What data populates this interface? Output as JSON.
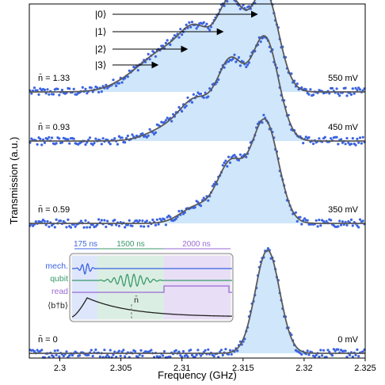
{
  "chart_data": {
    "type": "scatter",
    "xlabel": "Frequency (GHz)",
    "ylabel": "Transmission (a.u.)",
    "xlim": [
      2.2975,
      2.325
    ],
    "x_ticks": [
      "2.3",
      "2.305",
      "2.31",
      "2.315",
      "2.32",
      "2.325"
    ],
    "x_tick_values": [
      2.3,
      2.305,
      2.31,
      2.315,
      2.32,
      2.325
    ],
    "grid": false,
    "colors": {
      "points": "#3b63e0",
      "fit": "#5a5a5a",
      "fill": "#cfe6fb",
      "axis": "#000000"
    },
    "series": [
      {
        "nbar_label": "n̄ = 1.33",
        "drive_label": "550 mV",
        "peaks": [
          {
            "f": 2.3168,
            "amp": 0.96,
            "w": 0.0011
          },
          {
            "f": 2.314,
            "amp": 0.83,
            "w": 0.0011
          },
          {
            "f": 2.3112,
            "amp": 0.52,
            "w": 0.0013
          },
          {
            "f": 2.3088,
            "amp": 0.3,
            "w": 0.0016
          },
          {
            "f": 2.3065,
            "amp": 0.15,
            "w": 0.0018
          }
        ]
      },
      {
        "nbar_label": "n̄ = 0.93",
        "drive_label": "450 mV",
        "peaks": [
          {
            "f": 2.3168,
            "amp": 0.99,
            "w": 0.0011
          },
          {
            "f": 2.314,
            "amp": 0.74,
            "w": 0.0011
          },
          {
            "f": 2.3112,
            "amp": 0.36,
            "w": 0.0013
          },
          {
            "f": 2.3088,
            "amp": 0.12,
            "w": 0.0016
          }
        ]
      },
      {
        "nbar_label": "n̄ = 0.59",
        "drive_label": "350 mV",
        "peaks": [
          {
            "f": 2.3168,
            "amp": 0.99,
            "w": 0.0011
          },
          {
            "f": 2.314,
            "amp": 0.57,
            "w": 0.0011
          },
          {
            "f": 2.3112,
            "amp": 0.16,
            "w": 0.0013
          }
        ]
      },
      {
        "nbar_label": "n̄ = 0",
        "drive_label": "0 mV",
        "peaks": [
          {
            "f": 2.317,
            "amp": 1.0,
            "w": 0.001
          }
        ]
      }
    ],
    "annotations": [
      {
        "label": "|0⟩",
        "target_f": 2.3168
      },
      {
        "label": "|1⟩",
        "target_f": 2.314
      },
      {
        "label": "|2⟩",
        "target_f": 2.3112
      },
      {
        "label": "|3⟩",
        "target_f": 2.3088
      }
    ],
    "inset": {
      "rows": [
        "mech.",
        "qubit",
        "read",
        "⟨b†b⟩"
      ],
      "durations": [
        "175 ns",
        "1500 ns",
        "2000 ns"
      ],
      "nbar_marker": "n̄",
      "colors": {
        "mech": "#3b63e0",
        "qubit": "#3a9a6a",
        "read": "#9a6ad4",
        "trace": "#222222"
      }
    }
  }
}
